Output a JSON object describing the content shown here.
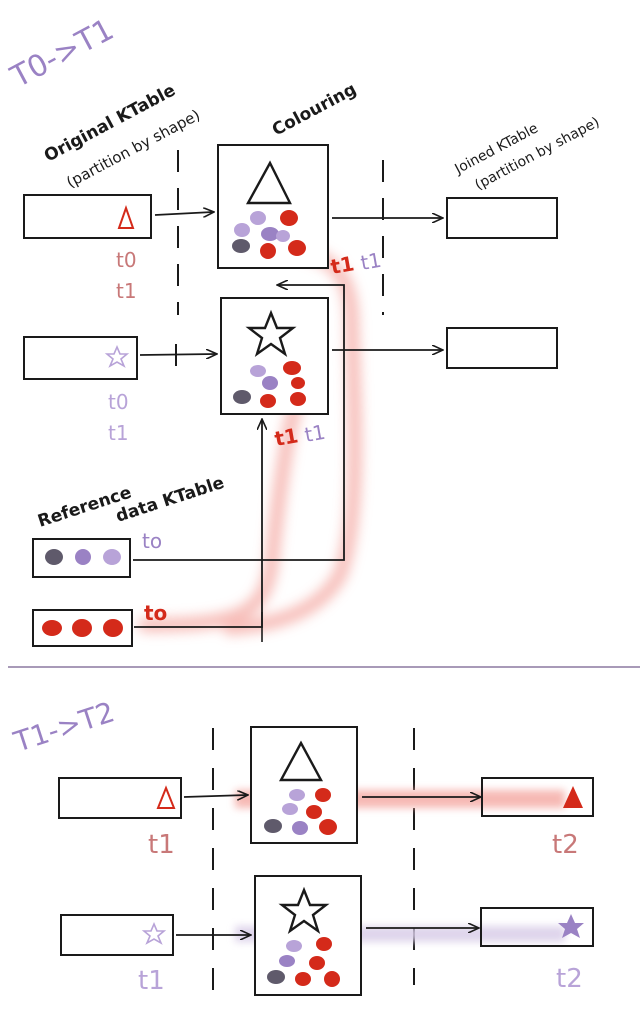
{
  "top_panel": {
    "step_label": "T0->T1",
    "original_ktable_title": "Original KTable",
    "original_ktable_subtitle": "(partition by shape)",
    "colouring_title": "Colouring",
    "joined_ktable_title": "Joined KTable",
    "joined_ktable_subtitle": "(partition by shape)",
    "reference_title": "Reference",
    "reference_subtitle": "data KTable",
    "triangle_row_times": [
      "t0",
      "t1"
    ],
    "star_row_times": [
      "t0",
      "t1"
    ],
    "triangle_box_t_red": "t1",
    "triangle_box_t_purple": "t1",
    "star_box_t_red": "t1",
    "star_box_t_purple": "t1",
    "ref_purple_time": "to",
    "ref_red_time": "to"
  },
  "bottom_panel": {
    "step_label": "T1->T2",
    "triangle_input_time": "t1",
    "triangle_output_time": "t2",
    "star_input_time": "t1",
    "star_output_time": "t2"
  },
  "colors": {
    "ink": "#1a1a1a",
    "red": "#d42a1a",
    "purple": "#9a82c4",
    "gray": "#5f5a6b",
    "lavender": "#b8a3d8",
    "divider": "#a89ab8",
    "highlight": "#f4a8a2"
  }
}
